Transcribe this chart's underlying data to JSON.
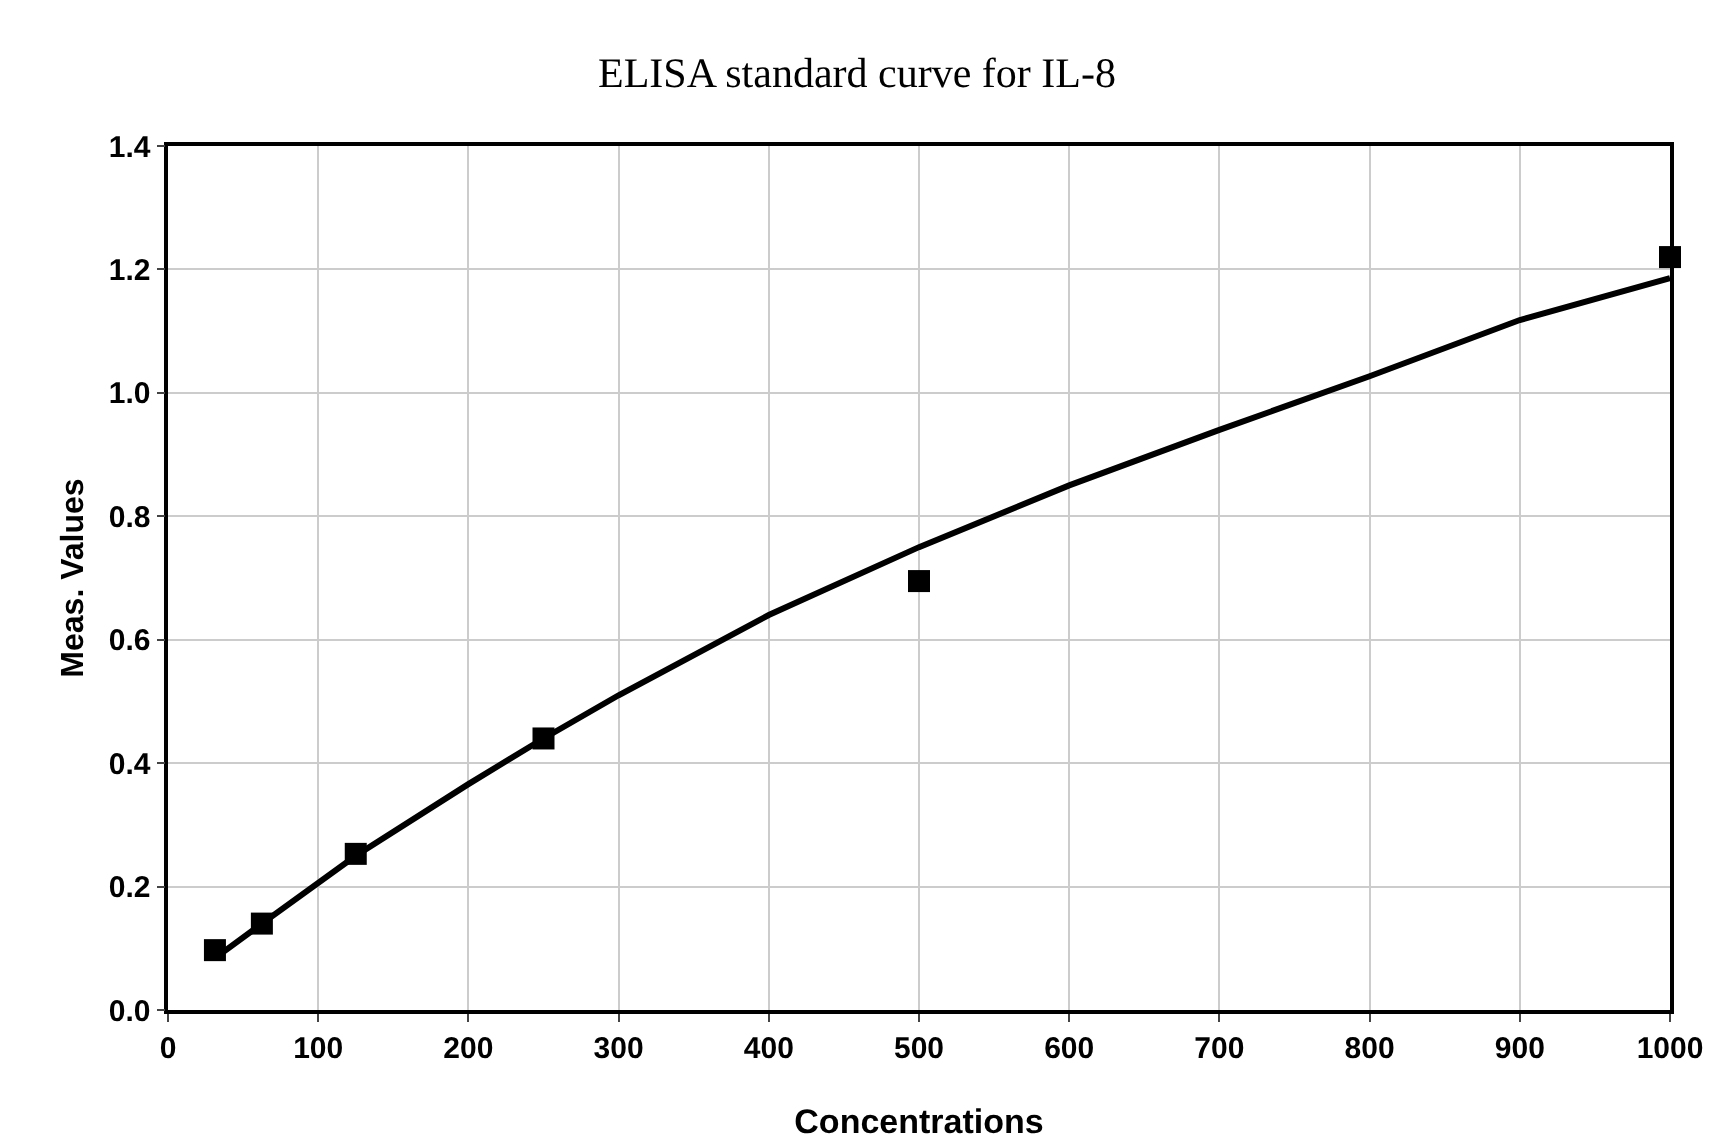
{
  "chart_data": {
    "type": "scatter",
    "title": "ELISA standard curve for IL-8",
    "xlabel": "Concentrations",
    "ylabel": "Meas. Values",
    "series": [
      {
        "color": "#000000",
        "marker": "square",
        "x": [
          31.25,
          62.5,
          125,
          250,
          500,
          1000
        ],
        "values": [
          0.097,
          0.14,
          0.253,
          0.44,
          0.695,
          1.22
        ]
      },
      {
        "type": "line",
        "color": "#000000",
        "marker": "none",
        "line_style": "solid",
        "x": [
          31.25,
          62.5,
          125,
          200,
          250,
          300,
          400,
          500,
          600,
          700,
          800,
          900,
          1000
        ],
        "values": [
          0.084,
          0.14,
          0.25,
          0.366,
          0.44,
          0.51,
          0.64,
          0.75,
          0.85,
          0.94,
          1.027,
          1.118,
          1.186
        ]
      }
    ],
    "xlim": [
      0,
      1000
    ],
    "xticks": [
      0,
      100,
      200,
      300,
      400,
      500,
      600,
      700,
      800,
      900,
      1000
    ],
    "ylim": [
      0,
      1.4
    ],
    "yticks": [
      {
        "value": 0,
        "label": "0.0"
      },
      {
        "value": 0.2,
        "label": "0.2"
      },
      {
        "value": 0.4,
        "label": "0.4"
      },
      {
        "value": 0.6,
        "label": "0.6"
      },
      {
        "value": 0.8,
        "label": "0.8"
      },
      {
        "value": 1,
        "label": "1.0"
      },
      {
        "value": 1.2,
        "label": "1.2"
      },
      {
        "value": 1.4,
        "label": "1.4"
      }
    ],
    "grid": true
  }
}
